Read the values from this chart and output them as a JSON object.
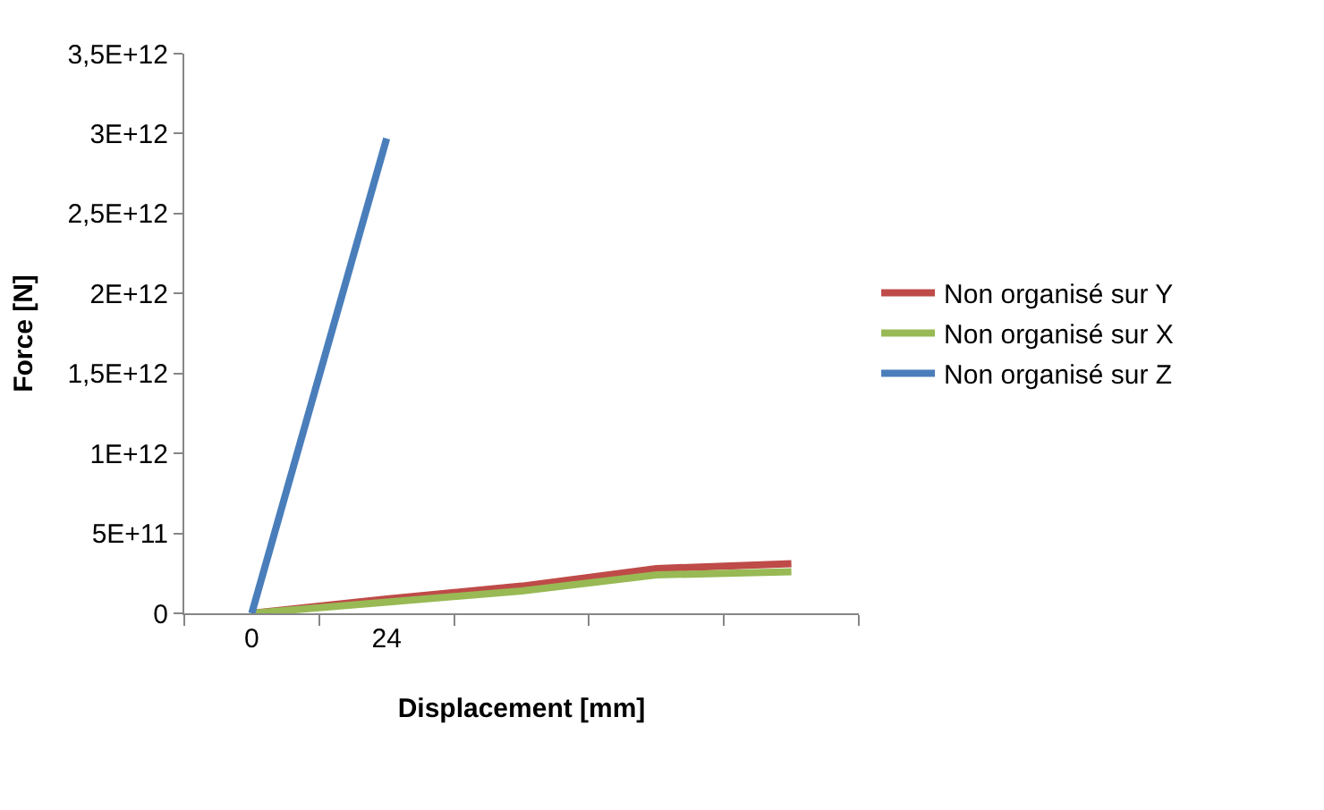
{
  "chart_data": {
    "type": "line",
    "xlabel": "Displacement [mm]",
    "ylabel": "Force [N]",
    "categories": [
      "0",
      "24",
      null,
      null,
      null
    ],
    "series": [
      {
        "name": "Non organisé sur Y",
        "color": "#be4b48",
        "values": [
          0,
          90000000000.0,
          170000000000.0,
          280000000000.0,
          310000000000.0
        ]
      },
      {
        "name": "Non organisé sur X",
        "color": "#98b954",
        "values": [
          0,
          70000000000.0,
          140000000000.0,
          240000000000.0,
          260000000000.0
        ]
      },
      {
        "name": "Non organisé sur Z",
        "color": "#4a7ebb",
        "values": [
          0,
          2970000000000.0,
          null,
          null,
          null
        ]
      }
    ],
    "ylim": [
      0,
      3500000000000.0
    ],
    "yticks": [
      0,
      {
        "value": 500000000000.0,
        "label": "5E+11"
      },
      {
        "value": 1000000000000.0,
        "label": "1E+12"
      },
      {
        "value": 1500000000000.0,
        "label": "1,5E+12"
      },
      {
        "value": 2000000000000.0,
        "label": "2E+12"
      },
      {
        "value": 2500000000000.0,
        "label": "2,5E+12"
      },
      {
        "value": 3000000000000.0,
        "label": "3E+12"
      },
      {
        "value": 3500000000000.0,
        "label": "3,5E+12"
      }
    ],
    "legend": "right",
    "marker": "none",
    "line_style": "solid"
  }
}
